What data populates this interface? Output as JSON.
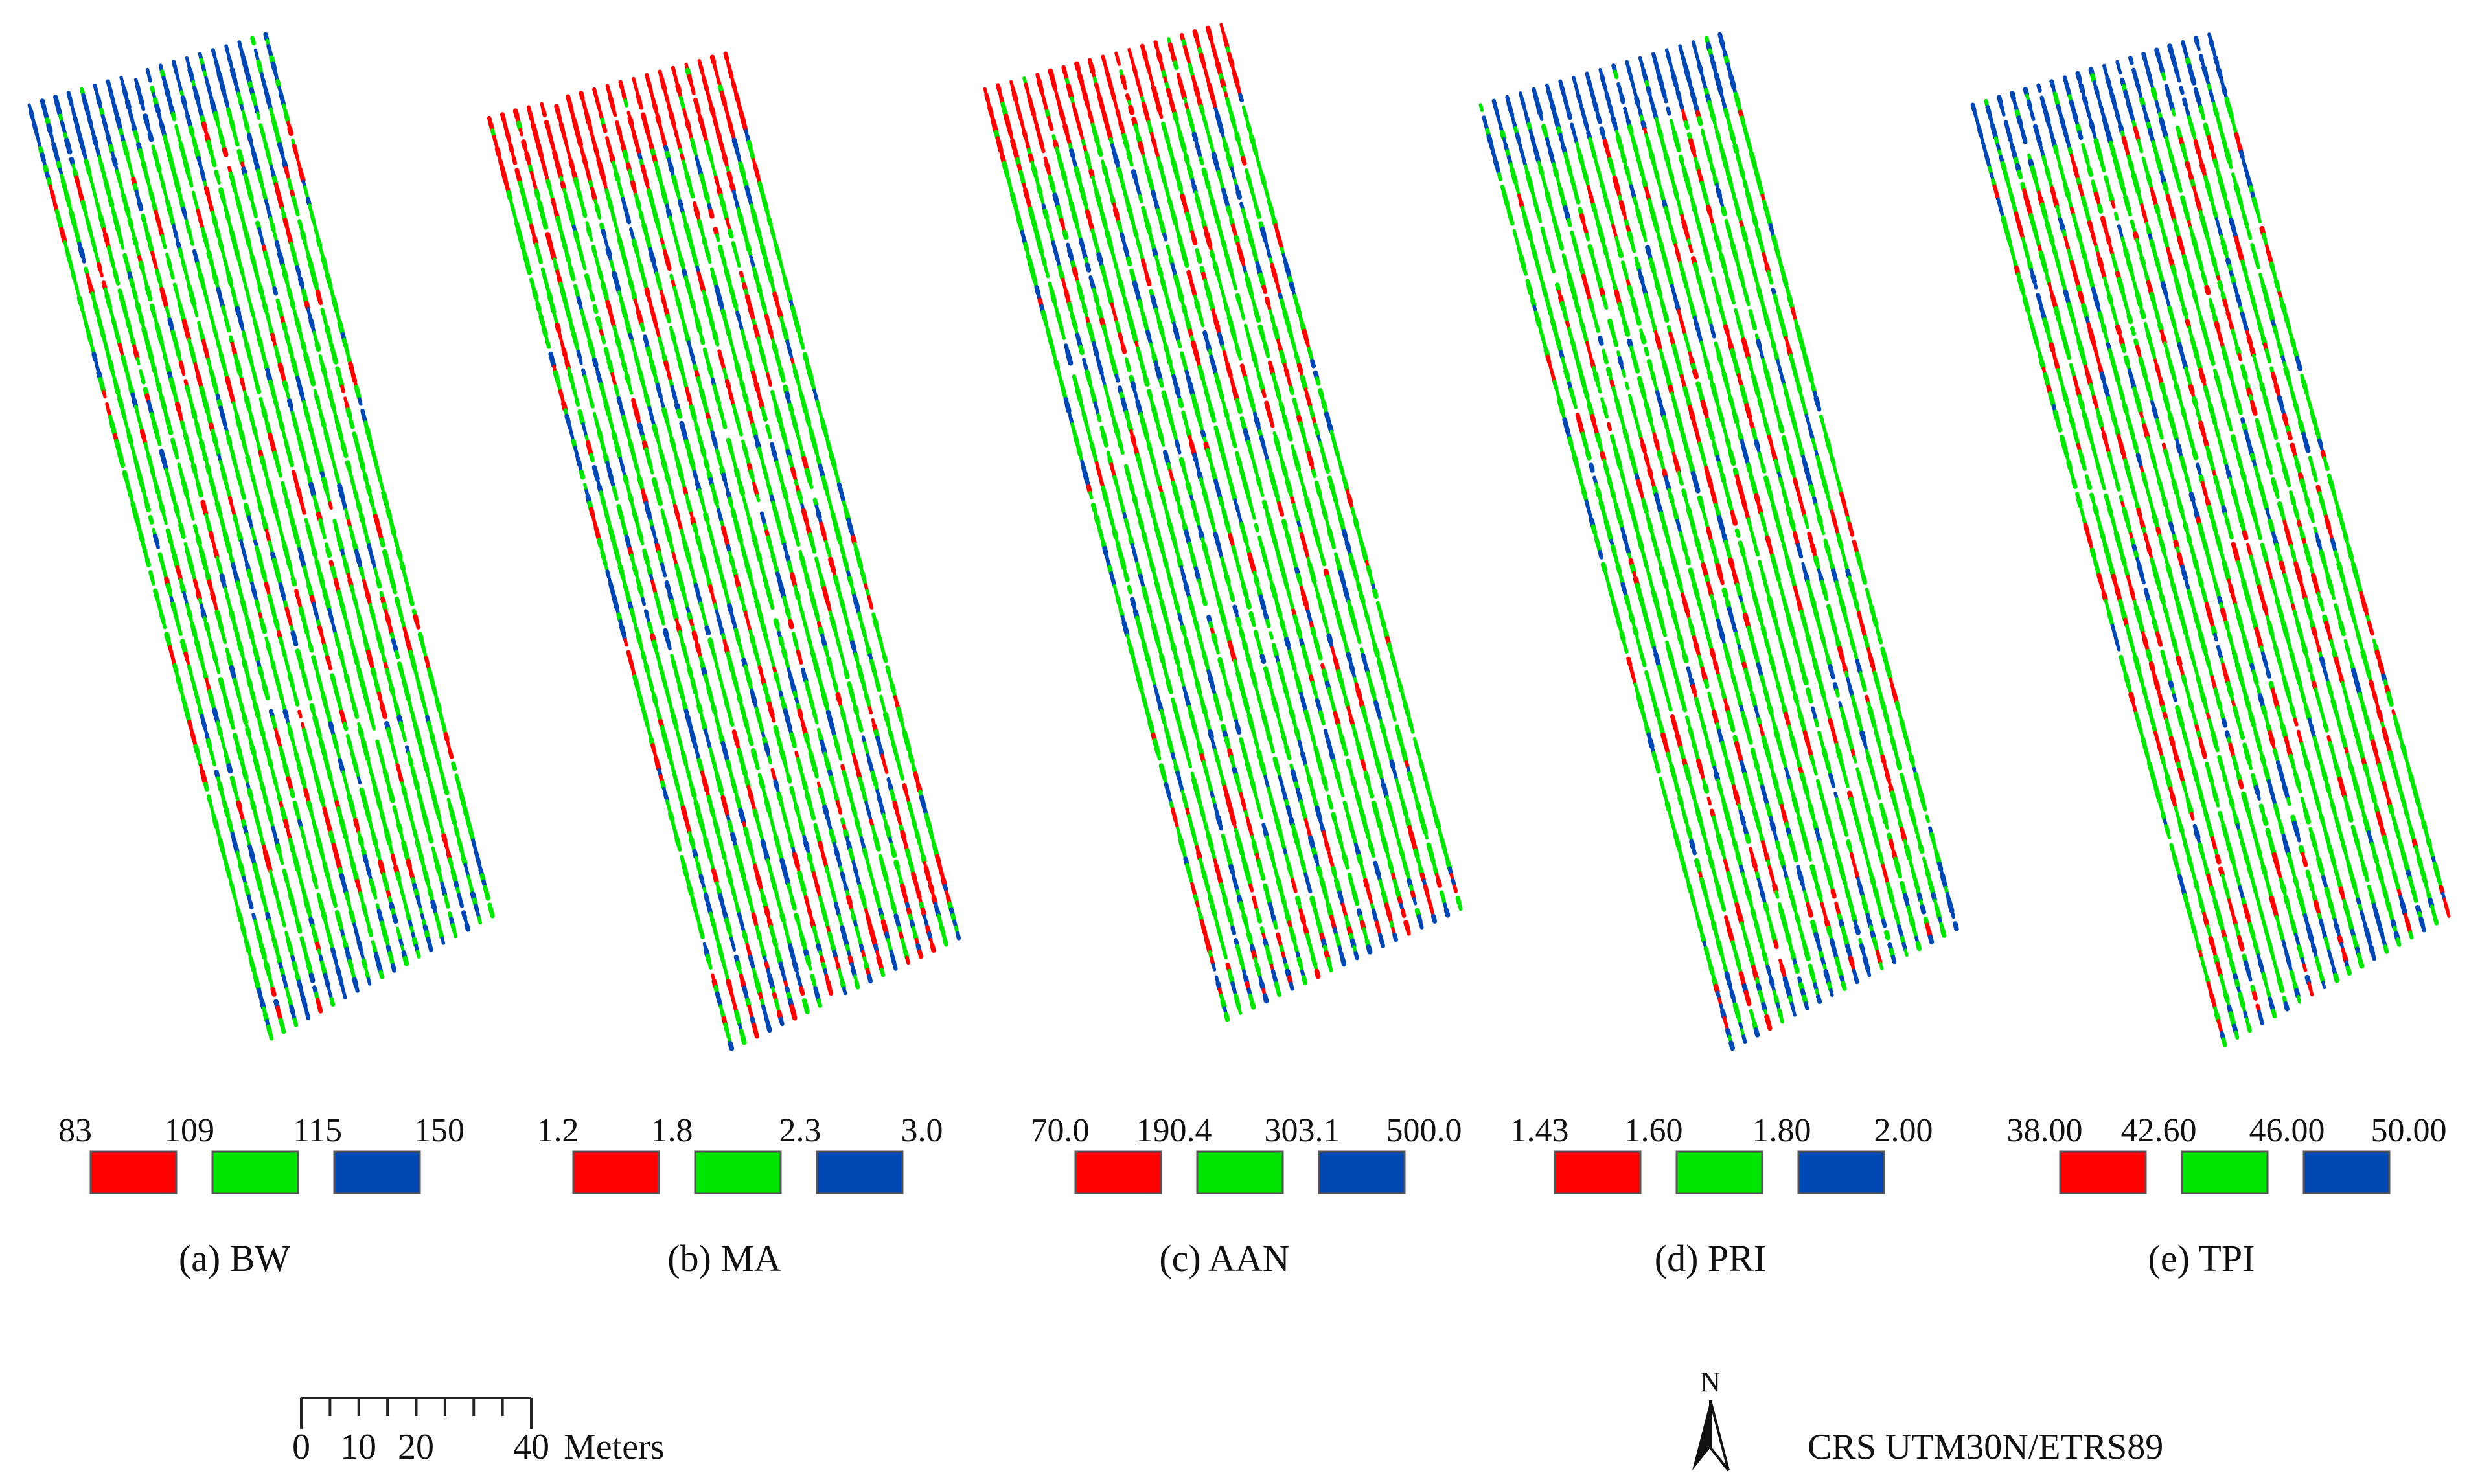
{
  "colors": {
    "low": "#ff0000",
    "mid": "#00e600",
    "high": "#0047b3",
    "rect_stroke": "#555555",
    "text": "#111111"
  },
  "panels": [
    {
      "id": "bw",
      "caption": "(a) BW",
      "breaks": [
        "83",
        "109",
        "115",
        "150"
      ]
    },
    {
      "id": "ma",
      "caption": "(b) MA",
      "breaks": [
        "1.2",
        "1.8",
        "2.3",
        "3.0"
      ]
    },
    {
      "id": "aan",
      "caption": "(c) AAN",
      "breaks": [
        "70.0",
        "190.4",
        "303.1",
        "500.0"
      ]
    },
    {
      "id": "pri",
      "caption": "(d) PRI",
      "breaks": [
        "1.43",
        "1.60",
        "1.80",
        "2.00"
      ]
    },
    {
      "id": "tpi",
      "caption": "(e) TPI",
      "breaks": [
        "38.00",
        "42.60",
        "46.00",
        "50.00"
      ]
    }
  ],
  "scale_bar": {
    "ticks": [
      "0",
      "10",
      "20",
      "40"
    ],
    "unit": "Meters"
  },
  "north_arrow": {
    "label": "N",
    "icon": "north-arrow-icon"
  },
  "crs_label": "CRS UTM30N/ETRS89"
}
